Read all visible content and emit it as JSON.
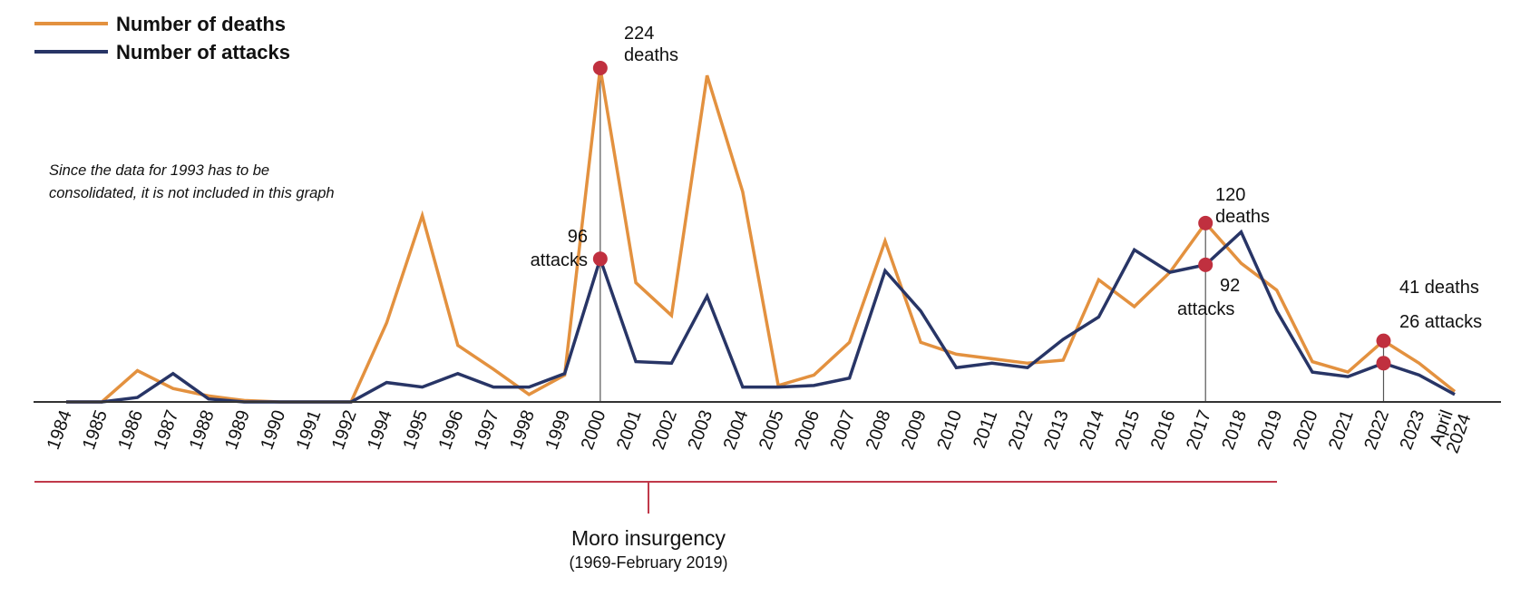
{
  "chart_data": {
    "type": "line",
    "categories": [
      "1984",
      "1985",
      "1986",
      "1987",
      "1988",
      "1989",
      "1990",
      "1991",
      "1992",
      "1994",
      "1995",
      "1996",
      "1997",
      "1998",
      "1999",
      "2000",
      "2001",
      "2002",
      "2003",
      "2004",
      "2005",
      "2006",
      "2007",
      "2008",
      "2009",
      "2010",
      "2011",
      "2012",
      "2013",
      "2014",
      "2015",
      "2016",
      "2017",
      "2018",
      "2019",
      "2020",
      "2021",
      "2022",
      "2023",
      "April 2024"
    ],
    "series": [
      {
        "name": "Number of deaths",
        "color": "#e3913f",
        "values": [
          0,
          0,
          21,
          9,
          4,
          1,
          0,
          0,
          0,
          53,
          125,
          38,
          22,
          5,
          18,
          224,
          80,
          58,
          219,
          141,
          11,
          18,
          40,
          108,
          40,
          32,
          29,
          26,
          28,
          82,
          64,
          87,
          120,
          93,
          75,
          27,
          20,
          41,
          26,
          7
        ]
      },
      {
        "name": "Number of attacks",
        "color": "#283566",
        "values": [
          0,
          0,
          3,
          19,
          2,
          0,
          0,
          0,
          0,
          13,
          10,
          19,
          10,
          10,
          19,
          96,
          27,
          26,
          71,
          10,
          10,
          11,
          16,
          88,
          61,
          23,
          26,
          23,
          42,
          57,
          102,
          87,
          92,
          114,
          61,
          20,
          17,
          26,
          18,
          5
        ]
      }
    ],
    "legend": {
      "placement": "top-left",
      "items": [
        "Number of deaths",
        "Number of attacks"
      ]
    },
    "ylim": [
      0,
      224
    ],
    "grid": false,
    "highlight_color": "#c0303f",
    "last_label_color": "#8b1a2b",
    "note": [
      "Since the data for 1993 has to be",
      "consolidated, it is not included in this graph"
    ],
    "annotations": {
      "y2000_deaths": [
        "224",
        "deaths"
      ],
      "y2000_attacks": [
        "96",
        "attacks"
      ],
      "y2017_deaths": [
        "120",
        "deaths"
      ],
      "y2017_attacks": [
        "92",
        "attacks"
      ],
      "y2022_deaths": "41 deaths",
      "y2022_attacks": "26 attacks"
    },
    "period": {
      "label": "Moro insurgency",
      "sublabel": "(1969-February 2019)",
      "color": "#c0394a"
    }
  }
}
